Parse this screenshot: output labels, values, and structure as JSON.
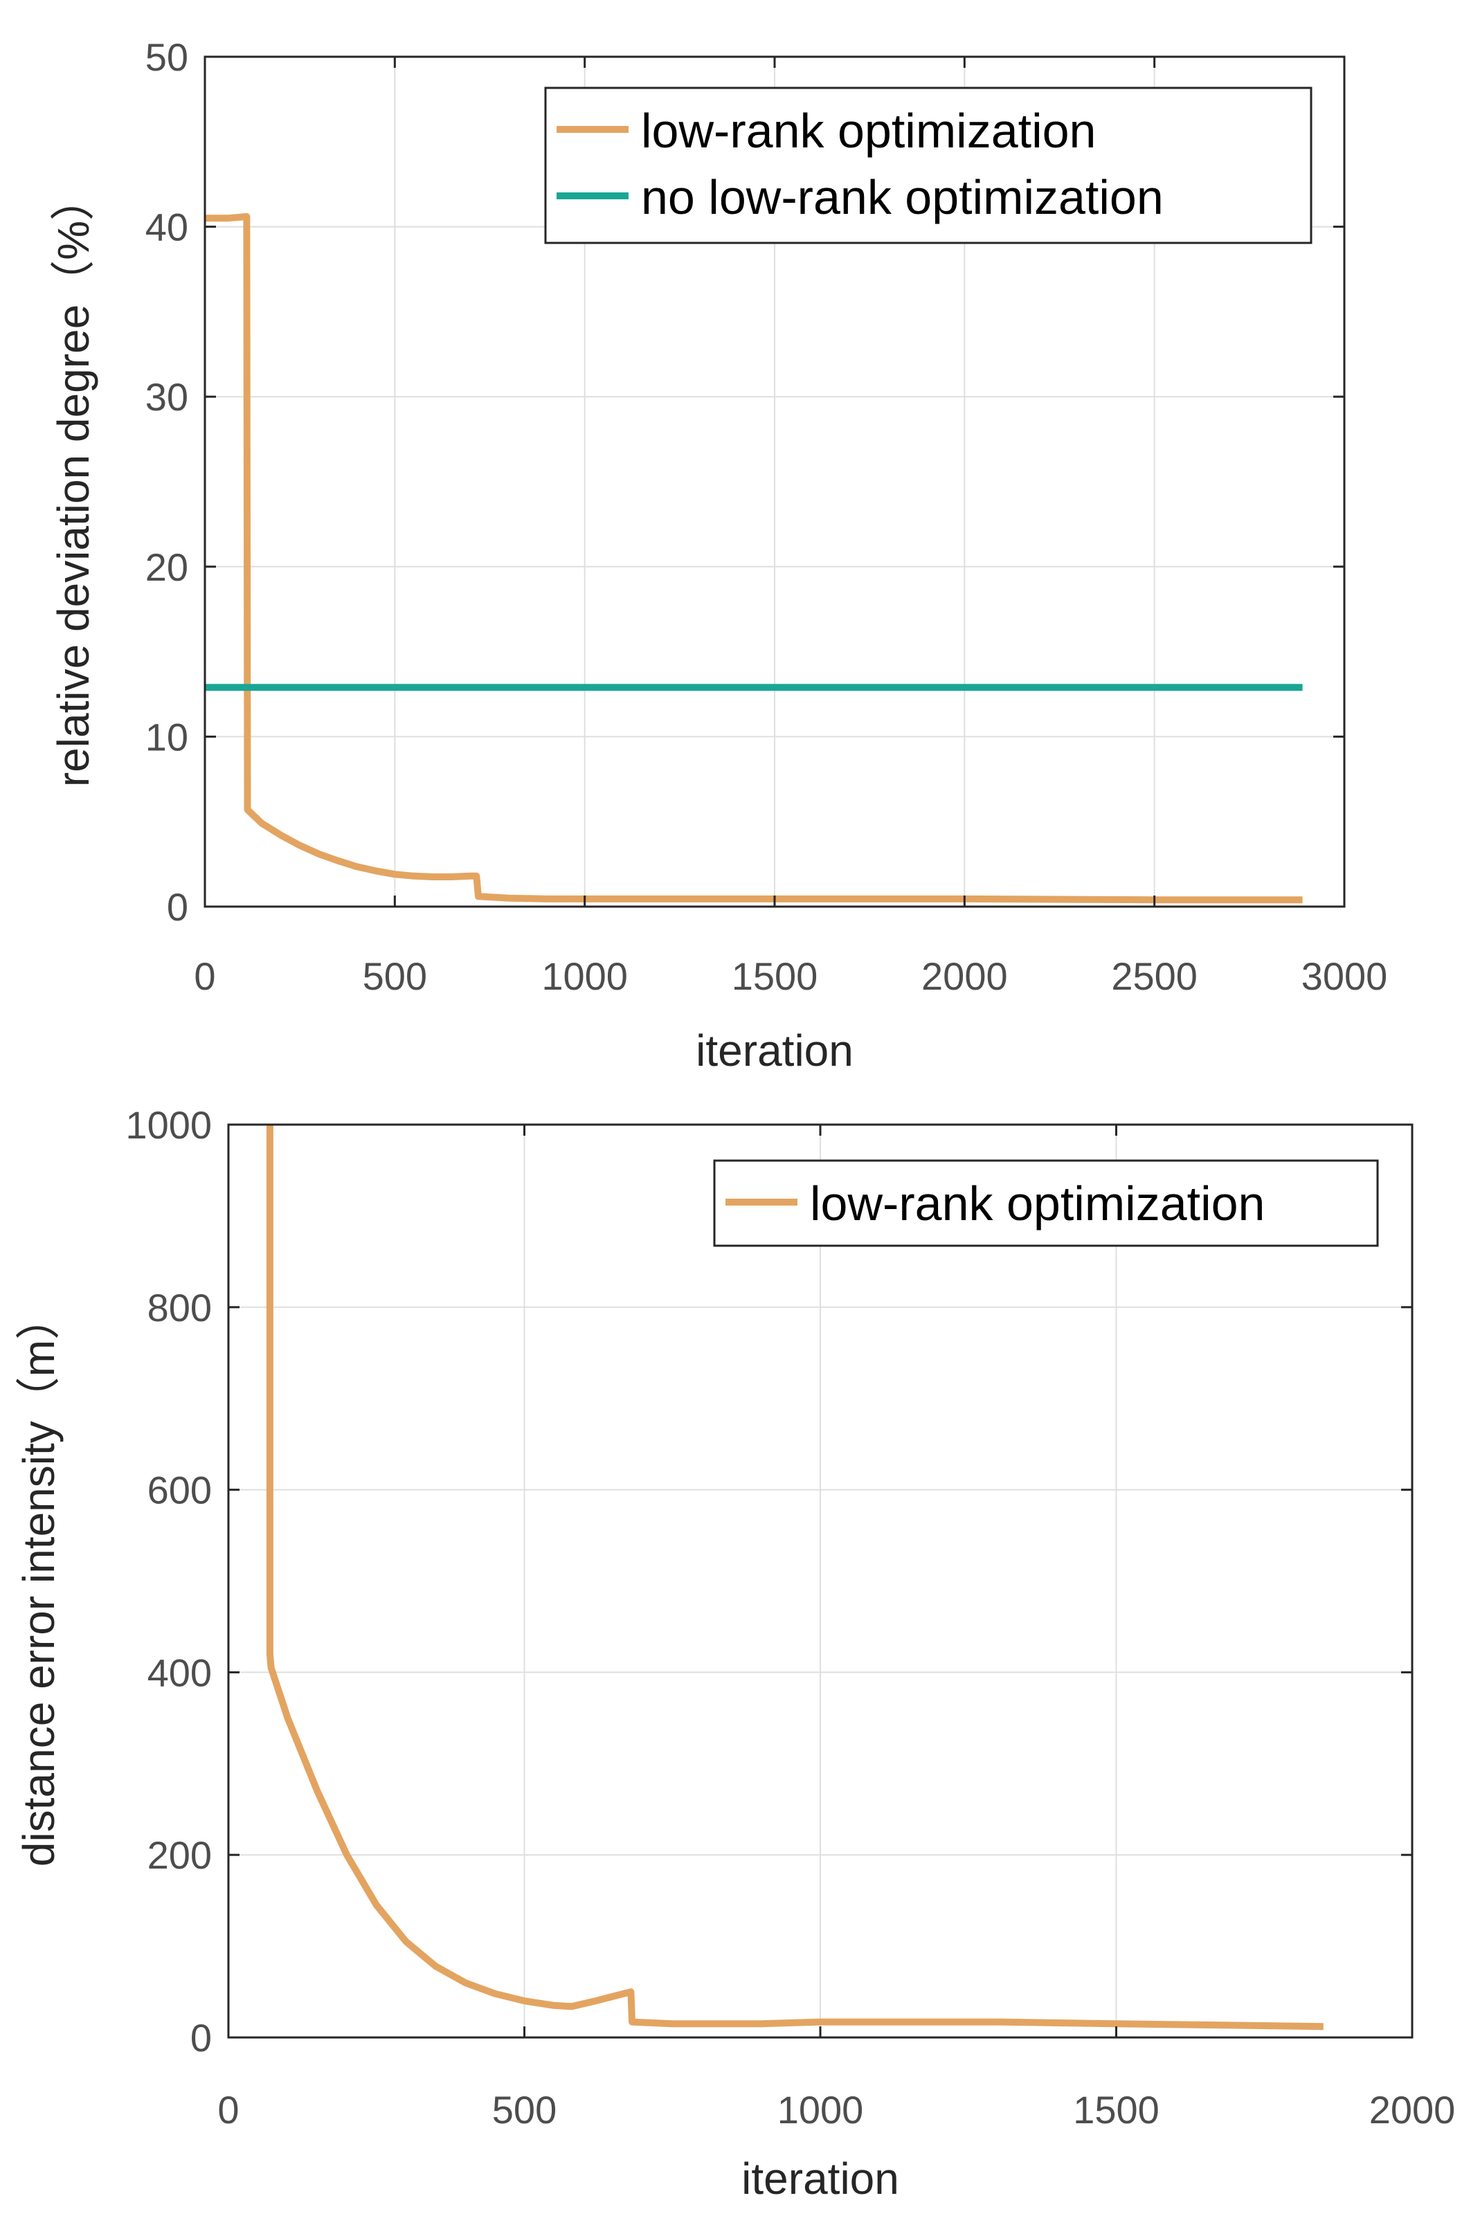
{
  "chart_data": [
    {
      "type": "line",
      "xlabel": "iteration",
      "ylabel": "relative deviation degree（%）",
      "xlim": [
        0,
        3000
      ],
      "ylim": [
        0,
        50
      ],
      "xticks": [
        0,
        500,
        1000,
        1500,
        2000,
        2500,
        3000
      ],
      "yticks": [
        0,
        10,
        20,
        30,
        40,
        50
      ],
      "grid": true,
      "legend_position": "top-right",
      "series": [
        {
          "name": "low-rank optimization",
          "color": "#e3a461",
          "x": [
            0,
            60,
            110,
            112,
            150,
            200,
            250,
            300,
            350,
            400,
            450,
            500,
            550,
            600,
            650,
            700,
            715,
            720,
            760,
            800,
            900,
            1000,
            1500,
            2000,
            2500,
            2890
          ],
          "y": [
            40.5,
            40.5,
            40.6,
            5.7,
            4.9,
            4.2,
            3.6,
            3.1,
            2.7,
            2.35,
            2.1,
            1.9,
            1.8,
            1.75,
            1.75,
            1.8,
            1.8,
            0.6,
            0.55,
            0.5,
            0.45,
            0.45,
            0.45,
            0.45,
            0.4,
            0.4
          ]
        },
        {
          "name": "no low-rank optimization",
          "color": "#1aa695",
          "x": [
            0,
            2890
          ],
          "y": [
            12.9,
            12.9
          ]
        }
      ]
    },
    {
      "type": "line",
      "xlabel": "iteration",
      "ylabel": "distance error intensity（m）",
      "xlim": [
        0,
        2000
      ],
      "ylim": [
        0,
        1000
      ],
      "xticks": [
        0,
        500,
        1000,
        1500,
        2000
      ],
      "yticks": [
        0,
        200,
        400,
        600,
        800,
        1000
      ],
      "grid": true,
      "legend_position": "top-right",
      "series": [
        {
          "name": "low-rank optimization",
          "color": "#e3a461",
          "x": [
            70,
            70,
            72,
            100,
            150,
            200,
            250,
            300,
            350,
            400,
            450,
            500,
            550,
            580,
            620,
            680,
            682,
            750,
            900,
            1000,
            1300,
            1500,
            1850
          ],
          "y": [
            1000,
            420,
            405,
            350,
            270,
            200,
            145,
            105,
            78,
            60,
            48,
            40,
            35,
            34,
            40,
            50,
            17,
            15,
            15,
            17,
            17,
            15,
            12
          ]
        }
      ]
    }
  ]
}
